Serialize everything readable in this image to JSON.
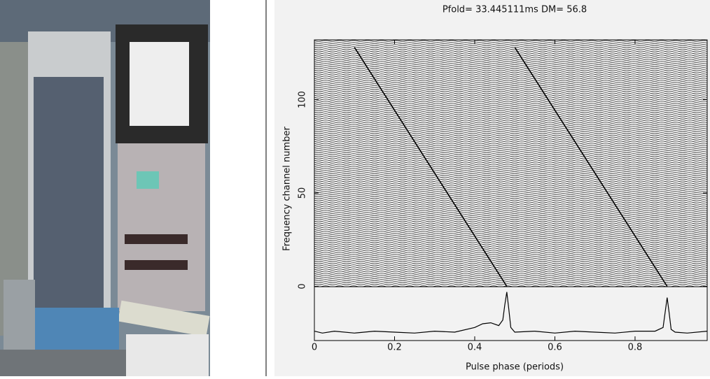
{
  "chart_data": {
    "type": "line",
    "title": "Pfold=  33.445111ms  DM=  56.8",
    "x_label": "Pulse phase (periods)",
    "y_label": "Frequency channel number",
    "xlim": [
      0,
      0.98
    ],
    "xticks": [
      0,
      0.2,
      0.4,
      0.6,
      0.8
    ],
    "ylim": [
      -29,
      132
    ],
    "yticks": [
      0,
      50,
      100
    ],
    "series": [
      {
        "color": "#000000",
        "x": [
          0,
          0.02,
          0.05,
          0.1,
          0.15,
          0.2,
          0.25,
          0.3,
          0.35,
          0.4,
          0.42,
          0.44,
          0.46,
          0.47,
          0.475,
          0.48,
          0.485,
          0.49,
          0.5,
          0.55,
          0.6,
          0.65,
          0.7,
          0.75,
          0.8,
          0.85,
          0.87,
          0.875,
          0.88,
          0.885,
          0.89,
          0.9,
          0.93,
          0.98
        ],
        "values": [
          -24,
          -25,
          -24,
          -25,
          -24,
          -24.5,
          -25,
          -24,
          -24.5,
          -22,
          -20,
          -19.5,
          -21,
          -18,
          -10,
          -3,
          -12,
          -22,
          -24.5,
          -24,
          -25,
          -24,
          -24.5,
          -25,
          -24,
          -24,
          -22,
          -14,
          -6,
          -14,
          -23,
          -24.5,
          -25,
          -24
        ]
      },
      {
        "color": "#000000",
        "x": [
          0.48,
          0.1
        ],
        "values": [
          0,
          128
        ]
      },
      {
        "color": "#000000",
        "x": [
          0.88,
          0.5
        ],
        "values": [
          0,
          128
        ]
      }
    ]
  }
}
